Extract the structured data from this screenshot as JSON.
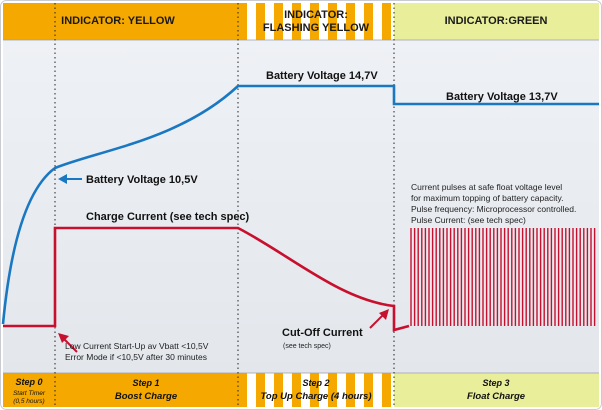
{
  "headers": {
    "yellow": "INDICATOR: YELLOW",
    "flashing_line1": "INDICATOR:",
    "flashing_line2": "FLASHING YELLOW",
    "green": "INDICATOR:GREEN"
  },
  "labels": {
    "battery_voltage_10_5": "Battery Voltage 10,5V",
    "battery_voltage_14_7": "Battery Voltage 14,7V",
    "battery_voltage_13_7": "Battery Voltage 13,7V",
    "charge_current": "Charge Current (see tech spec)",
    "cutoff_current": "Cut-Off Current",
    "cutoff_note": "(see tech spec)",
    "low_current_line1": "Low Current Start-Up av Vbatt <10,5V",
    "low_current_line2": "Error Mode if <10,5V after 30 minutes",
    "pulse_line1": "Current pulses at safe float voltage level",
    "pulse_line2": "for maximum topping of battery capacity.",
    "pulse_line3": "Pulse frequency: Microprocessor controlled.",
    "pulse_line4": "Pulse Current:  (see tech spec)"
  },
  "steps": {
    "step0_title": "Step 0",
    "step0_line1": "Start Timer",
    "step0_line2": "(0,5 hours)",
    "step1_title": "Step 1",
    "step1_name": "Boost Charge",
    "step2_title": "Step 2",
    "step2_name": "Top Up Charge (4 hours)",
    "step3_title": "Step 3",
    "step3_name": "Float Charge"
  },
  "colors": {
    "yellow": "#f5a800",
    "green": "#e9ee9a",
    "voltage": "#1a78c2",
    "current": "#c8102e",
    "panel": "#e8ecf1"
  }
}
